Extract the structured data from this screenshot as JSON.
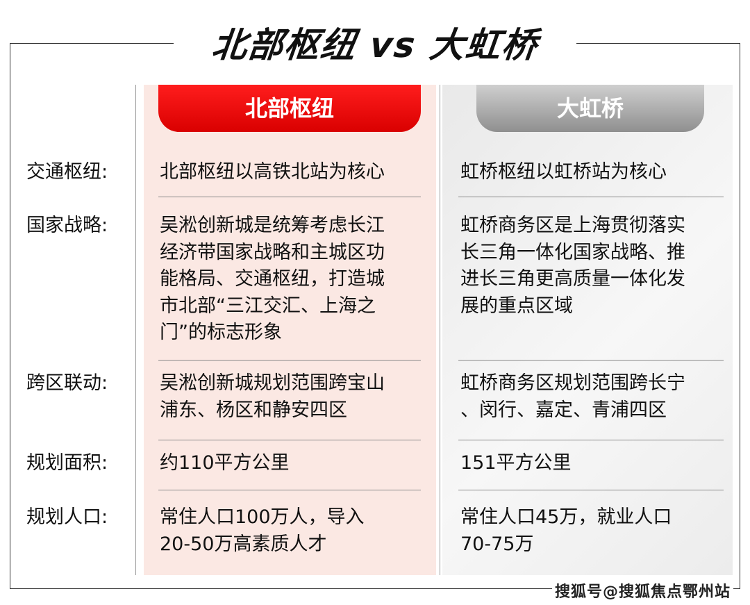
{
  "title": "北部枢纽 vs 大虹桥",
  "columns": {
    "left": "北部枢纽",
    "right": "大虹桥"
  },
  "colors": {
    "left_header": "#e00000",
    "right_header": "#a8a8a8",
    "left_bg": "#fbe8e3",
    "right_bg": "#efefef"
  },
  "rows": [
    {
      "label": "交通枢纽:",
      "left": [
        "北部枢纽以高铁北站为核心"
      ],
      "right": [
        "虹桥枢纽以虹桥站为核心"
      ]
    },
    {
      "label": "国家战略:",
      "left": [
        "吴淞创新城是统筹考虑长江",
        "经济带国家战略和主城区功",
        "能格局、交通枢纽，打造城",
        "市北部“三江交汇、上海之",
        "门”的标志形象"
      ],
      "right": [
        "虹桥商务区是上海贯彻落实",
        "长三角一体化国家战略、推",
        "进长三角更高质量一体化发",
        "展的重点区域"
      ]
    },
    {
      "label": "跨区联动:",
      "left": [
        "吴淞创新城规划范围跨宝山",
        "浦东、杨区和静安四区"
      ],
      "right": [
        "虹桥商务区规划范围跨长宁",
        "、闵行、嘉定、青浦四区"
      ]
    },
    {
      "label": "规划面积:",
      "left": [
        "约110平方公里"
      ],
      "right": [
        "151平方公里"
      ]
    },
    {
      "label": "规划人口:",
      "left": [
        "常住人口100万人，导入",
        "20-50万高素质人才"
      ],
      "right": [
        "常住人口45万，就业人口",
        "70-75万"
      ]
    }
  ],
  "watermark": "搜狐号@搜狐焦点鄂州站"
}
